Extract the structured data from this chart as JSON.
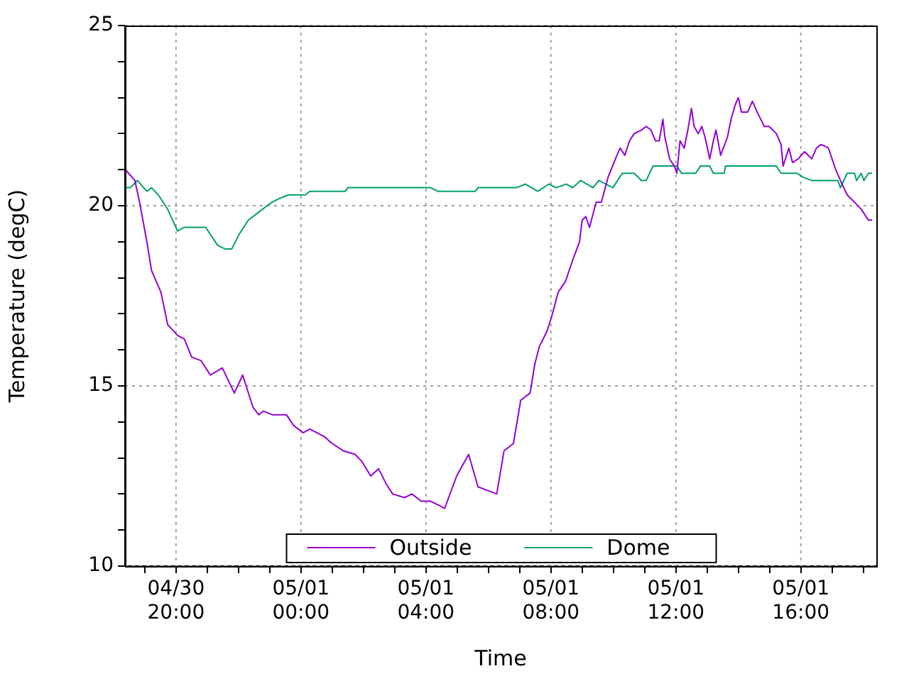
{
  "chart_data": {
    "type": "line",
    "xlabel": "Time",
    "ylabel": "Temperature (degC)",
    "xlim": [
      "--04-30T18:22",
      "--05-01T18:25"
    ],
    "xticks": [
      {
        "value": "--04-30T19:00",
        "label": null
      },
      {
        "value": "--04-30T20:00",
        "label": "04/30\n20:00"
      },
      {
        "value": "--04-30T21:00",
        "label": null
      },
      {
        "value": "--04-30T22:00",
        "label": null
      },
      {
        "value": "--04-30T23:00",
        "label": null
      },
      {
        "value": "--05-01T00:00",
        "label": "05/01\n00:00"
      },
      {
        "value": "--05-01T01:00",
        "label": null
      },
      {
        "value": "--05-01T02:00",
        "label": null
      },
      {
        "value": "--05-01T03:00",
        "label": null
      },
      {
        "value": "--05-01T04:00",
        "label": "05/01\n04:00"
      },
      {
        "value": "--05-01T05:00",
        "label": null
      },
      {
        "value": "--05-01T06:00",
        "label": null
      },
      {
        "value": "--05-01T07:00",
        "label": null
      },
      {
        "value": "--05-01T08:00",
        "label": "05/01\n08:00"
      },
      {
        "value": "--05-01T09:00",
        "label": null
      },
      {
        "value": "--05-01T10:00",
        "label": null
      },
      {
        "value": "--05-01T11:00",
        "label": null
      },
      {
        "value": "--05-01T12:00",
        "label": "05/01\n12:00"
      },
      {
        "value": "--05-01T13:00",
        "label": null
      },
      {
        "value": "--05-01T14:00",
        "label": null
      },
      {
        "value": "--05-01T15:00",
        "label": null
      },
      {
        "value": "--05-01T16:00",
        "label": "05/01\n16:00"
      },
      {
        "value": "--05-01T17:00",
        "label": null
      },
      {
        "value": "--05-01T18:00",
        "label": null
      }
    ],
    "ylim": [
      10,
      25
    ],
    "yticks": [
      10,
      {
        "value": 11,
        "label": null
      },
      {
        "value": 12,
        "label": null
      },
      {
        "value": 13,
        "label": null
      },
      {
        "value": 14,
        "label": null
      },
      15,
      {
        "value": 16,
        "label": null
      },
      {
        "value": 17,
        "label": null
      },
      {
        "value": 18,
        "label": null
      },
      {
        "value": 19,
        "label": null
      },
      20,
      {
        "value": 21,
        "label": null
      },
      {
        "value": 22,
        "label": null
      },
      {
        "value": 23,
        "label": null
      },
      {
        "value": 24,
        "label": null
      },
      25
    ],
    "grid": true,
    "legend": "bottom",
    "marker": "none",
    "line_style": "solid",
    "series": [
      {
        "name": "Outside",
        "color": "#9400d3",
        "x": [
          "--04-30T18:23",
          "--04-30T18:41",
          "--04-30T18:50",
          "--04-30T19:04",
          "--04-30T19:13",
          "--04-30T19:31",
          "--04-30T19:44",
          "--04-30T20:03",
          "--04-30T20:16",
          "--04-30T20:30",
          "--04-30T20:48",
          "--04-30T21:06",
          "--04-30T21:29",
          "--04-30T21:52",
          "--04-30T22:08",
          "--04-30T22:28",
          "--04-30T22:39",
          "--04-30T22:48",
          "--04-30T23:05",
          "--04-30T23:32",
          "--04-30T23:46",
          "--05-01T00:04",
          "--05-01T00:17",
          "--05-01T00:44",
          "--05-01T01:00",
          "--05-01T01:21",
          "--05-01T01:44",
          "--05-01T01:57",
          "--05-01T02:14",
          "--05-01T02:29",
          "--05-01T02:43",
          "--05-01T02:56",
          "--05-01T03:19",
          "--05-01T03:33",
          "--05-01T03:51",
          "--05-01T04:09",
          "--05-01T04:23",
          "--05-01T04:36",
          "--05-01T04:59",
          "--05-01T05:22",
          "--05-01T05:40",
          "--05-01T05:58",
          "--05-01T06:16",
          "--05-01T06:30",
          "--05-01T06:48",
          "--05-01T07:02",
          "--05-01T07:20",
          "--05-01T07:29",
          "--05-01T07:38",
          "--05-01T07:52",
          "--05-01T08:01",
          "--05-01T08:14",
          "--05-01T08:28",
          "--05-01T08:42",
          "--05-01T08:55",
          "--05-01T09:00",
          "--05-01T09:07",
          "--05-01T09:14",
          "--05-01T09:27",
          "--05-01T09:37",
          "--05-01T09:50",
          "--05-01T10:04",
          "--05-01T10:13",
          "--05-01T10:22",
          "--05-01T10:31",
          "--05-01T10:40",
          "--05-01T10:54",
          "--05-01T11:03",
          "--05-01T11:12",
          "--05-01T11:21",
          "--05-01T11:28",
          "--05-01T11:35",
          "--05-01T11:39",
          "--05-01T11:48",
          "--05-01T11:57",
          "--05-01T12:02",
          "--05-01T12:08",
          "--05-01T12:16",
          "--05-01T12:23",
          "--05-01T12:30",
          "--05-01T12:35",
          "--05-01T12:43",
          "--05-01T12:50",
          "--05-01T12:56",
          "--05-01T13:05",
          "--05-01T13:12",
          "--05-01T13:17",
          "--05-01T13:26",
          "--05-01T13:39",
          "--05-01T13:46",
          "--05-01T13:54",
          "--05-01T14:00",
          "--05-01T14:06",
          "--05-01T14:18",
          "--05-01T14:27",
          "--05-01T14:36",
          "--05-01T14:50",
          "--05-01T14:59",
          "--05-01T15:13",
          "--05-01T15:22",
          "--05-01T15:26",
          "--05-01T15:37",
          "--05-01T15:44",
          "--05-01T15:55",
          "--05-01T16:07",
          "--05-01T16:21",
          "--05-01T16:30",
          "--05-01T16:39",
          "--05-01T16:53",
          "--05-01T17:07",
          "--05-01T17:16",
          "--05-01T17:29",
          "--05-01T17:43",
          "--05-01T17:56",
          "--05-01T18:10",
          "--05-01T18:17"
        ],
        "values": [
          21.0,
          20.7,
          20.1,
          19.0,
          18.2,
          17.6,
          16.7,
          16.4,
          16.3,
          15.8,
          15.7,
          15.3,
          15.5,
          14.8,
          15.3,
          14.4,
          14.2,
          14.3,
          14.2,
          14.2,
          13.9,
          13.7,
          13.8,
          13.6,
          13.4,
          13.2,
          13.1,
          12.9,
          12.5,
          12.7,
          12.3,
          12.0,
          11.9,
          12.0,
          11.8,
          11.8,
          11.7,
          11.6,
          12.5,
          13.1,
          12.2,
          12.1,
          12.0,
          13.2,
          13.4,
          14.6,
          14.8,
          15.6,
          16.1,
          16.5,
          16.9,
          17.6,
          17.9,
          18.5,
          19.0,
          19.6,
          19.7,
          19.4,
          20.1,
          20.1,
          20.8,
          21.3,
          21.6,
          21.4,
          21.8,
          22.0,
          22.1,
          22.2,
          22.1,
          21.8,
          21.8,
          22.4,
          21.9,
          21.3,
          21.1,
          20.9,
          21.8,
          21.6,
          22.1,
          22.7,
          22.2,
          22.0,
          22.2,
          21.9,
          21.3,
          21.8,
          22.1,
          21.4,
          21.9,
          22.4,
          22.8,
          23.0,
          22.6,
          22.6,
          22.9,
          22.6,
          22.2,
          22.2,
          22.0,
          21.7,
          21.1,
          21.6,
          21.2,
          21.3,
          21.5,
          21.3,
          21.6,
          21.7,
          21.6,
          21.0,
          20.7,
          20.3,
          20.1,
          19.9,
          19.6,
          19.6
        ]
      },
      {
        "name": "Dome",
        "color": "#009e73",
        "x": [
          "--04-30T18:23",
          "--04-30T18:32",
          "--04-30T18:46",
          "--04-30T19:04",
          "--04-30T19:13",
          "--04-30T19:26",
          "--04-30T19:44",
          "--04-30T20:03",
          "--04-30T20:16",
          "--04-30T20:57",
          "--04-30T21:20",
          "--04-30T21:34",
          "--04-30T21:47",
          "--04-30T22:01",
          "--04-30T22:19",
          "--04-30T22:37",
          "--04-30T22:55",
          "--04-30T23:05",
          "--04-30T23:18",
          "--04-30T23:36",
          "--05-01T00:08",
          "--05-01T00:17",
          "--05-01T01:25",
          "--05-01T01:30",
          "--05-01T04:09",
          "--05-01T04:23",
          "--05-01T05:35",
          "--05-01T05:40",
          "--05-01T06:53",
          "--05-01T07:11",
          "--05-01T07:35",
          "--05-01T07:56",
          "--05-01T08:10",
          "--05-01T08:30",
          "--05-01T08:42",
          "--05-01T08:57",
          "--05-01T09:21",
          "--05-01T09:32",
          "--05-01T09:59",
          "--05-01T10:17",
          "--05-01T10:40",
          "--05-01T10:54",
          "--05-01T11:03",
          "--05-01T11:16",
          "--05-01T12:02",
          "--05-01T12:11",
          "--05-01T12:38",
          "--05-01T12:47",
          "--05-01T13:05",
          "--05-01T13:12",
          "--05-01T13:33",
          "--05-01T13:35",
          "--05-01T15:13",
          "--05-01T15:22",
          "--05-01T15:53",
          "--05-01T16:03",
          "--05-01T16:21",
          "--05-01T17:11",
          "--05-01T17:16",
          "--05-01T17:29",
          "--05-01T17:43",
          "--05-01T17:47",
          "--05-01T17:56",
          "--05-01T18:01",
          "--05-01T18:10",
          "--05-01T18:17"
        ],
        "values": [
          20.5,
          20.5,
          20.7,
          20.4,
          20.5,
          20.3,
          19.9,
          19.3,
          19.4,
          19.4,
          18.9,
          18.8,
          18.8,
          19.2,
          19.6,
          19.8,
          20.0,
          20.1,
          20.2,
          20.3,
          20.3,
          20.4,
          20.4,
          20.5,
          20.5,
          20.4,
          20.4,
          20.5,
          20.5,
          20.6,
          20.4,
          20.6,
          20.5,
          20.6,
          20.5,
          20.7,
          20.5,
          20.7,
          20.5,
          20.9,
          20.9,
          20.7,
          20.7,
          21.1,
          21.1,
          20.9,
          20.9,
          21.1,
          21.1,
          20.9,
          20.9,
          21.1,
          21.1,
          20.9,
          20.9,
          20.8,
          20.7,
          20.7,
          20.5,
          20.9,
          20.9,
          20.7,
          20.9,
          20.7,
          20.9,
          20.9
        ]
      }
    ]
  }
}
